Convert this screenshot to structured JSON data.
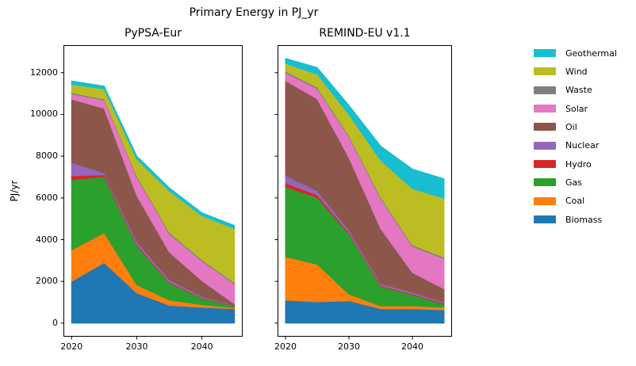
{
  "title": "Primary Energy in PJ_yr",
  "ylabel": "PJ/yr",
  "legend": {
    "entries": [
      {
        "label": "Geothermal",
        "color": "#17becf"
      },
      {
        "label": "Wind",
        "color": "#bcbd22"
      },
      {
        "label": "Waste",
        "color": "#7f7f7f"
      },
      {
        "label": "Solar",
        "color": "#e377c2"
      },
      {
        "label": "Oil",
        "color": "#8c564b"
      },
      {
        "label": "Nuclear",
        "color": "#9467bd"
      },
      {
        "label": "Hydro",
        "color": "#d62728"
      },
      {
        "label": "Gas",
        "color": "#2ca02c"
      },
      {
        "label": "Coal",
        "color": "#ff7f0e"
      },
      {
        "label": "Biomass",
        "color": "#1f77b4"
      }
    ]
  },
  "chart_data": {
    "type": "area",
    "stacked": true,
    "grid": false,
    "legend_position": "outside-right",
    "x": [
      2020,
      2025,
      2030,
      2035,
      2040,
      2045
    ],
    "xticks": [
      2020,
      2030,
      2040
    ],
    "yticks": [
      0,
      2000,
      4000,
      6000,
      8000,
      10000,
      12000
    ],
    "xlim": [
      2018.75,
      2046.25
    ],
    "ylim": [
      -650,
      13320
    ],
    "charts": [
      {
        "title": "PyPSA-Eur",
        "series": [
          {
            "name": "Biomass",
            "color": "#1f77b4",
            "values": [
              2000,
              2900,
              1450,
              850,
              760,
              690
            ]
          },
          {
            "name": "Coal",
            "color": "#ff7f0e",
            "values": [
              1500,
              1430,
              380,
              250,
              125,
              40
            ]
          },
          {
            "name": "Gas",
            "color": "#2ca02c",
            "values": [
              3370,
              2690,
              1890,
              820,
              310,
              80
            ]
          },
          {
            "name": "Hydro",
            "color": "#d62728",
            "values": [
              190,
              90,
              60,
              40,
              25,
              15
            ]
          },
          {
            "name": "Nuclear",
            "color": "#9467bd",
            "values": [
              630,
              90,
              130,
              120,
              60,
              25
            ]
          },
          {
            "name": "Oil",
            "color": "#8c564b",
            "values": [
              3040,
              3090,
              2200,
              1320,
              750,
              70
            ]
          },
          {
            "name": "Solar",
            "color": "#e377c2",
            "values": [
              250,
              400,
              900,
              880,
              950,
              960
            ]
          },
          {
            "name": "Waste",
            "color": "#7f7f7f",
            "values": [
              60,
              50,
              60,
              65,
              60,
              50
            ]
          },
          {
            "name": "Wind",
            "color": "#bcbd22",
            "values": [
              400,
              480,
              790,
              1990,
              2100,
              2600
            ]
          },
          {
            "name": "Geothermal",
            "color": "#17becf",
            "values": [
              165,
              140,
              150,
              150,
              150,
              150
            ]
          }
        ]
      },
      {
        "title": "REMIND-EU v1.1",
        "series": [
          {
            "name": "Biomass",
            "color": "#1f77b4",
            "values": [
              1100,
              1020,
              1070,
              690,
              690,
              630
            ]
          },
          {
            "name": "Coal",
            "color": "#ff7f0e",
            "values": [
              2080,
              1800,
              320,
              130,
              140,
              130
            ]
          },
          {
            "name": "Gas",
            "color": "#2ca02c",
            "values": [
              3350,
              3200,
              2890,
              940,
              530,
              150
            ]
          },
          {
            "name": "Hydro",
            "color": "#d62728",
            "values": [
              190,
              130,
              60,
              40,
              40,
              40
            ]
          },
          {
            "name": "Nuclear",
            "color": "#9467bd",
            "values": [
              360,
              190,
              130,
              90,
              85,
              60
            ]
          },
          {
            "name": "Oil",
            "color": "#8c564b",
            "values": [
              4540,
              4400,
              3460,
              2640,
              940,
              630
            ]
          },
          {
            "name": "Solar",
            "color": "#e377c2",
            "values": [
              380,
              500,
              1000,
              1450,
              1260,
              1450
            ]
          },
          {
            "name": "Waste",
            "color": "#7f7f7f",
            "values": [
              60,
              60,
              60,
              60,
              60,
              60
            ]
          },
          {
            "name": "Wind",
            "color": "#bcbd22",
            "values": [
              380,
              630,
              1010,
              1760,
              2700,
              2830
            ]
          },
          {
            "name": "Geothermal",
            "color": "#17becf",
            "values": [
              250,
              320,
              440,
              690,
              940,
              940
            ]
          }
        ]
      }
    ]
  }
}
